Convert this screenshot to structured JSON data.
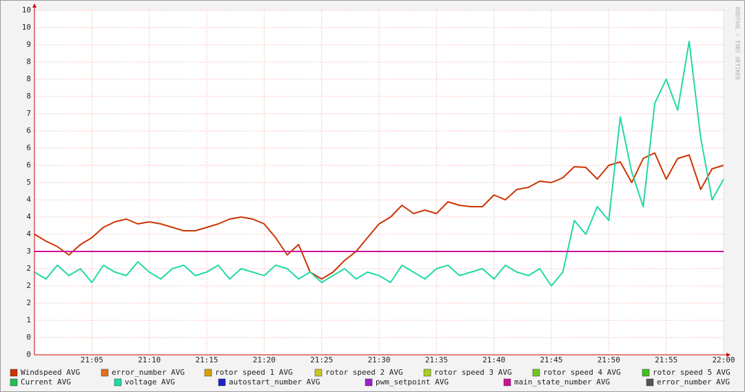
{
  "chart_data": {
    "type": "line",
    "watermark": "RRDTOOL / TOBI OETIKER",
    "x": [
      "21:00",
      "21:01",
      "21:02",
      "21:03",
      "21:04",
      "21:05",
      "21:06",
      "21:07",
      "21:08",
      "21:09",
      "21:10",
      "21:11",
      "21:12",
      "21:13",
      "21:14",
      "21:15",
      "21:16",
      "21:17",
      "21:18",
      "21:19",
      "21:20",
      "21:21",
      "21:22",
      "21:23",
      "21:24",
      "21:25",
      "21:26",
      "21:27",
      "21:28",
      "21:29",
      "21:30",
      "21:31",
      "21:32",
      "21:33",
      "21:34",
      "21:35",
      "21:36",
      "21:37",
      "21:38",
      "21:39",
      "21:40",
      "21:41",
      "21:42",
      "21:43",
      "21:44",
      "21:45",
      "21:46",
      "21:47",
      "21:48",
      "21:49",
      "21:50",
      "21:51",
      "21:52",
      "21:53",
      "21:54",
      "21:55",
      "21:56",
      "21:57",
      "21:58",
      "21:59",
      "22:00"
    ],
    "xlim": [
      "21:00",
      "22:00"
    ],
    "xticks": [
      "21:05",
      "21:10",
      "21:15",
      "21:20",
      "21:25",
      "21:30",
      "21:35",
      "21:40",
      "21:45",
      "21:50",
      "21:55",
      "22:00"
    ],
    "ylim": [
      0,
      10
    ],
    "yticks": [
      0,
      {
        "value": 0.5,
        "label": "0"
      },
      1,
      {
        "value": 1.5,
        "label": "2"
      },
      2,
      {
        "value": 2.5,
        "label": "2"
      },
      3,
      {
        "value": 3.5,
        "label": "4"
      },
      4,
      {
        "value": 4.5,
        "label": "4"
      },
      5,
      {
        "value": 5.5,
        "label": "6"
      },
      6,
      {
        "value": 6.5,
        "label": "6"
      },
      7,
      {
        "value": 7.5,
        "label": "8"
      },
      8,
      {
        "value": 8.5,
        "label": "8"
      },
      9,
      {
        "value": 9.5,
        "label": "10"
      },
      10
    ],
    "grid": true,
    "series": [
      {
        "name": "Windspeed AVG",
        "color": "#cc3300",
        "values": [
          3.5,
          3.3,
          3.14,
          2.9,
          3.2,
          3.4,
          3.7,
          3.86,
          3.94,
          3.8,
          3.86,
          3.8,
          3.7,
          3.6,
          3.6,
          3.7,
          3.8,
          3.94,
          4.0,
          3.94,
          3.8,
          3.4,
          2.9,
          3.2,
          2.4,
          2.2,
          2.4,
          2.74,
          3.0,
          3.4,
          3.8,
          4.0,
          4.34,
          4.1,
          4.2,
          4.1,
          4.44,
          4.34,
          4.3,
          4.3,
          4.64,
          4.5,
          4.8,
          4.86,
          5.04,
          5.0,
          5.14,
          5.46,
          5.44,
          5.1,
          5.5,
          5.6,
          5.0,
          5.7,
          5.86,
          5.1,
          5.7,
          5.8,
          4.8,
          5.4,
          5.5
        ]
      },
      {
        "name": "error_number AVG",
        "color": "#e07020"
      },
      {
        "name": "rotor speed 1 AVG",
        "color": "#d8a000"
      },
      {
        "name": "rotor speed 2 AVG",
        "color": "#c8c820"
      },
      {
        "name": "rotor speed 3 AVG",
        "color": "#a8d020"
      },
      {
        "name": "rotor speed 4 AVG",
        "color": "#70c820"
      },
      {
        "name": "rotor speed 5 AVG",
        "color": "#40c020"
      },
      {
        "name": "Current AVG",
        "color": "#20c050"
      },
      {
        "name": "voltage AVG",
        "color": "#1fd9a6",
        "values": [
          2.4,
          2.2,
          2.6,
          2.3,
          2.5,
          2.1,
          2.6,
          2.4,
          2.3,
          2.7,
          2.4,
          2.2,
          2.5,
          2.6,
          2.3,
          2.4,
          2.6,
          2.2,
          2.5,
          2.4,
          2.3,
          2.6,
          2.5,
          2.2,
          2.4,
          2.1,
          2.3,
          2.5,
          2.2,
          2.4,
          2.3,
          2.1,
          2.6,
          2.4,
          2.2,
          2.5,
          2.6,
          2.3,
          2.4,
          2.5,
          2.2,
          2.6,
          2.4,
          2.3,
          2.5,
          2.0,
          2.4,
          3.9,
          3.5,
          4.3,
          3.9,
          6.9,
          5.3,
          4.3,
          7.3,
          8.0,
          7.1,
          9.1,
          6.3,
          4.5,
          5.1
        ]
      },
      {
        "name": "autostart_number AVG",
        "color": "#2020cc"
      },
      {
        "name": "pwm_setpoint AVG",
        "color": "#9920cc"
      },
      {
        "name": "main_state_number AVG",
        "color": "#cc1199",
        "values": [
          3,
          3,
          3,
          3,
          3,
          3,
          3,
          3,
          3,
          3,
          3,
          3,
          3,
          3,
          3,
          3,
          3,
          3,
          3,
          3,
          3,
          3,
          3,
          3,
          3,
          3,
          3,
          3,
          3,
          3,
          3,
          3,
          3,
          3,
          3,
          3,
          3,
          3,
          3,
          3,
          3,
          3,
          3,
          3,
          3,
          3,
          3,
          3,
          3,
          3,
          3,
          3,
          3,
          3,
          3,
          3,
          3,
          3,
          3,
          3,
          3
        ]
      },
      {
        "name": "error_number AVG",
        "color": "#555555"
      }
    ]
  }
}
